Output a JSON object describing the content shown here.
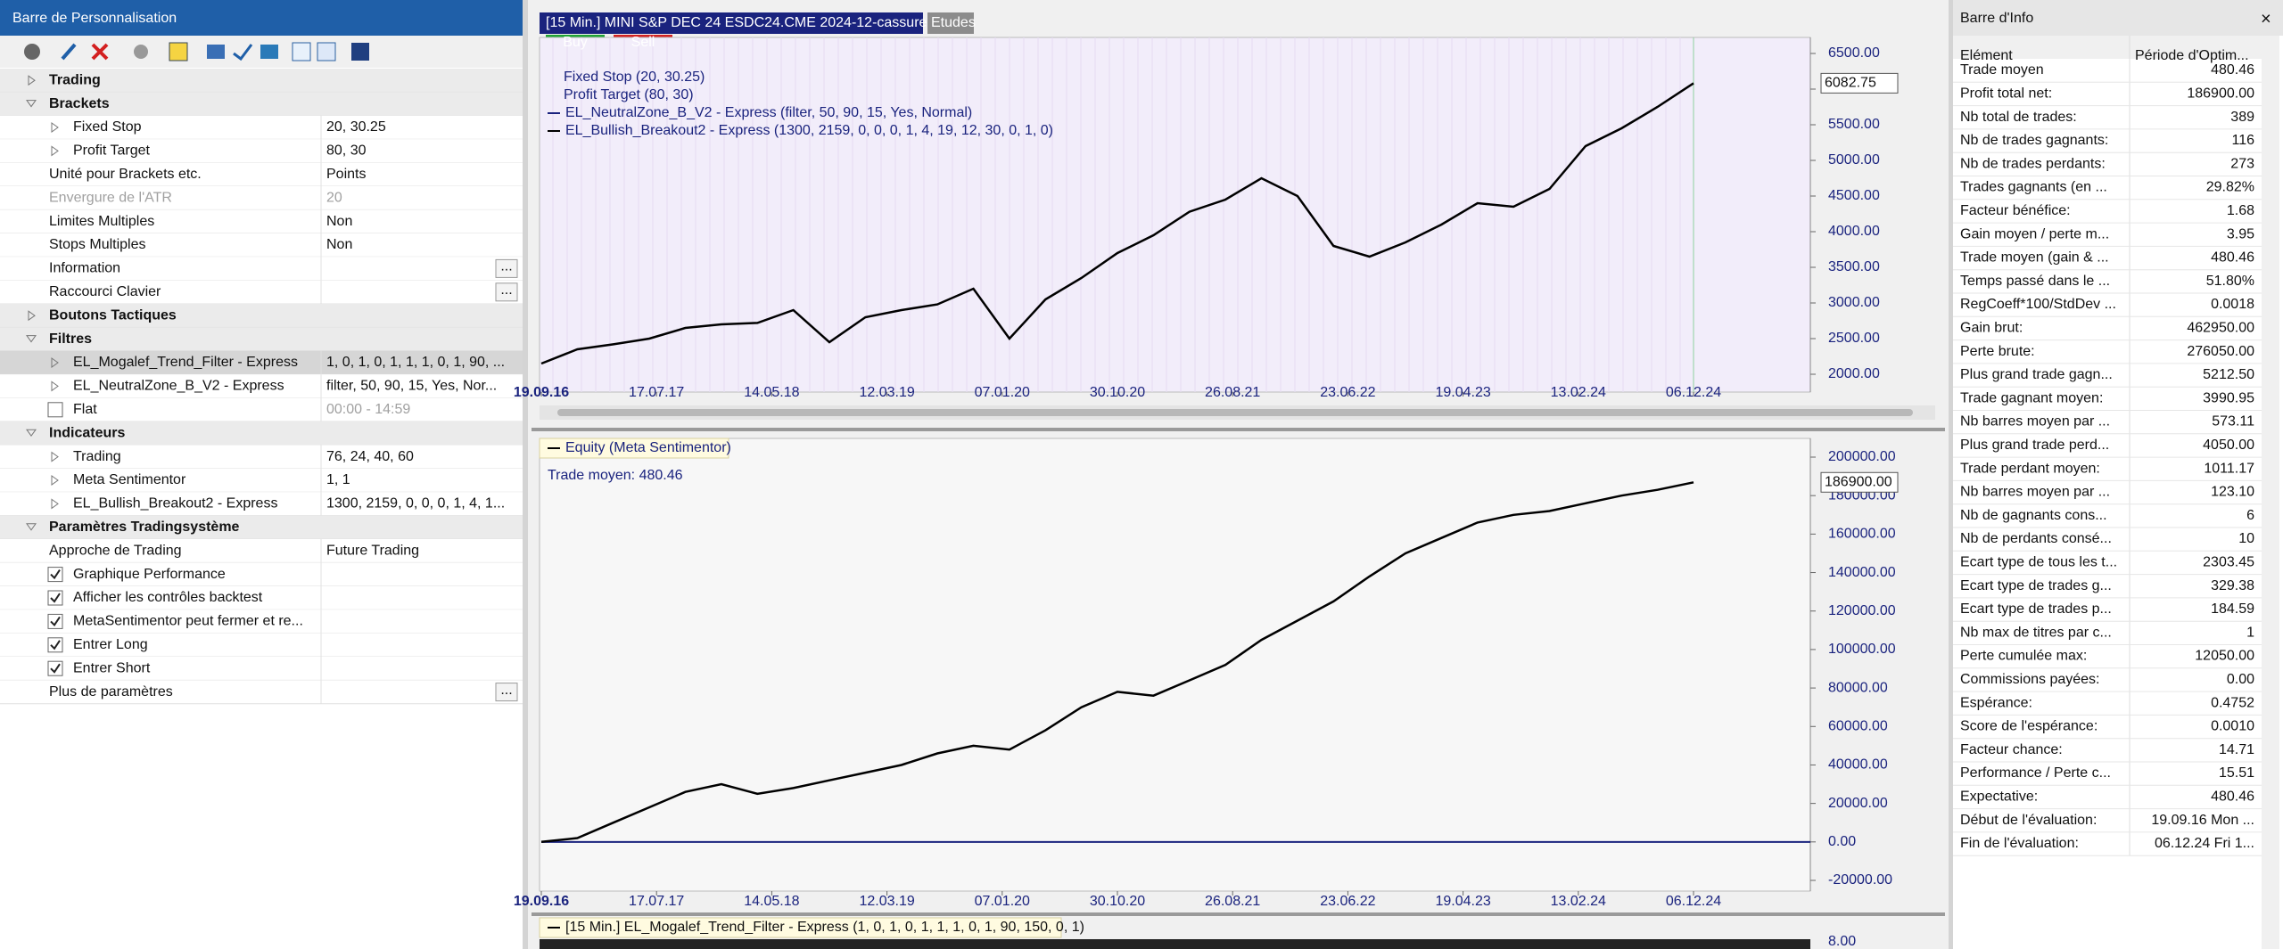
{
  "left_panel": {
    "title": "Barre de Personnalisation",
    "rows": [
      {
        "kind": "section",
        "label": "Trading"
      },
      {
        "kind": "section",
        "label": "Brackets",
        "open": true
      },
      {
        "kind": "item",
        "label": "Fixed Stop",
        "value": "20, 30.25",
        "expander": true
      },
      {
        "kind": "item",
        "label": "Profit Target",
        "value": "80, 30",
        "expander": true
      },
      {
        "kind": "item",
        "label": "Unité pour Brackets etc.",
        "value": "Points"
      },
      {
        "kind": "item",
        "label": "Envergure de l'ATR",
        "value": "20",
        "disabled": true
      },
      {
        "kind": "item",
        "label": "Limites Multiples",
        "value": "Non"
      },
      {
        "kind": "item",
        "label": "Stops Multiples",
        "value": "Non"
      },
      {
        "kind": "item",
        "label": "Information",
        "button": "..."
      },
      {
        "kind": "item",
        "label": "Raccourci Clavier",
        "button": "..."
      },
      {
        "kind": "section",
        "label": "Boutons Tactiques"
      },
      {
        "kind": "section",
        "label": "Filtres",
        "open": true
      },
      {
        "kind": "item",
        "label": "EL_Mogalef_Trend_Filter - Express",
        "value": "1, 0, 1, 0, 1, 1, 1, 0, 1, 90, ...",
        "expander": true,
        "selected": true
      },
      {
        "kind": "item",
        "label": "EL_NeutralZone_B_V2 - Express",
        "value": "filter, 50, 90, 15, Yes, Nor...",
        "expander": true
      },
      {
        "kind": "check",
        "label": "Flat",
        "value": "00:00 - 14:59",
        "checked": false,
        "disabled_value": true
      },
      {
        "kind": "section",
        "label": "Indicateurs",
        "open": true
      },
      {
        "kind": "item",
        "label": "Trading",
        "value": "76, 24, 40, 60",
        "expander": true
      },
      {
        "kind": "item",
        "label": "Meta Sentimentor",
        "value": "1, 1",
        "expander": true
      },
      {
        "kind": "item",
        "label": "EL_Bullish_Breakout2 - Express",
        "value": "1300, 2159, 0, 0, 0, 1, 4, 1...",
        "expander": true
      },
      {
        "kind": "section",
        "label": "Paramètres Tradingsystème",
        "open": true
      },
      {
        "kind": "item",
        "label": "Approche de Trading",
        "value": "Future Trading"
      },
      {
        "kind": "check",
        "label": "Graphique Performance",
        "checked": true
      },
      {
        "kind": "check",
        "label": "Afficher les contrôles backtest",
        "checked": true
      },
      {
        "kind": "check",
        "label": "MetaSentimentor peut fermer et re...",
        "checked": true
      },
      {
        "kind": "check",
        "label": "Entrer Long",
        "checked": true
      },
      {
        "kind": "check",
        "label": "Entrer Short",
        "checked": true
      },
      {
        "kind": "item",
        "label": "Plus de paramètres",
        "button": "..."
      }
    ]
  },
  "chart_data": [
    {
      "type": "line",
      "title": "[15 Min.] MINI S&P DEC 24   ESDC24.CME 2024-12-cassure",
      "tab": "Etudes",
      "buttons": [
        "Buy",
        "Sell"
      ],
      "legend": [
        "Fixed Stop  (20, 30.25)",
        "Profit Target  (80, 30)",
        "EL_NeutralZone_B_V2 - Express  (filter, 50, 90, 15, Yes, Normal)",
        "EL_Bullish_Breakout2 - Express  (1300, 2159, 0, 0, 0, 1, 4, 19, 12, 30, 0, 1, 0)"
      ],
      "xtick_labels": [
        "19.09.16",
        "17.07.17",
        "14.05.18",
        "12.03.19",
        "07.01.20",
        "30.10.20",
        "26.08.21",
        "23.06.22",
        "19.04.23",
        "13.02.24",
        "06.12.24"
      ],
      "values": [
        2150,
        2350,
        2420,
        2500,
        2650,
        2700,
        2720,
        2900,
        2450,
        2800,
        2900,
        2980,
        3200,
        2500,
        3050,
        3350,
        3700,
        3950,
        4280,
        4450,
        4750,
        4500,
        3800,
        3650,
        3850,
        4100,
        4400,
        4350,
        4600,
        5200,
        5450,
        5750,
        6082.75
      ],
      "last_label": "6082.75",
      "color": "#000000",
      "ylim": [
        2000,
        6500
      ],
      "yticks": [
        {
          "value": 2000,
          "label": "2000.00"
        },
        {
          "value": 2500,
          "label": "2500.00"
        },
        {
          "value": 3000,
          "label": "3000.00"
        },
        {
          "value": 3500,
          "label": "3500.00"
        },
        {
          "value": 4000,
          "label": "4000.00"
        },
        {
          "value": 4500,
          "label": "4500.00"
        },
        {
          "value": 5000,
          "label": "5000.00"
        },
        {
          "value": 5500,
          "label": "5500.00"
        },
        {
          "value": 6000,
          "label": "6000.00"
        },
        {
          "value": 6500,
          "label": "6500.00"
        }
      ]
    },
    {
      "type": "line",
      "legend": [
        "Equity (Meta Sentimentor)"
      ],
      "annotation": "Trade moyen: 480.46",
      "xtick_labels": [
        "19.09.16",
        "17.07.17",
        "14.05.18",
        "12.03.19",
        "07.01.20",
        "30.10.20",
        "26.08.21",
        "23.06.22",
        "19.04.23",
        "13.02.24",
        "06.12.24"
      ],
      "values": [
        0,
        2000,
        10000,
        18000,
        26000,
        30000,
        25000,
        28000,
        32000,
        36000,
        40000,
        46000,
        50000,
        48000,
        58000,
        70000,
        78000,
        76000,
        84000,
        92000,
        105000,
        115000,
        125000,
        138000,
        150000,
        158000,
        166000,
        170000,
        172000,
        176000,
        180000,
        183000,
        186900
      ],
      "last_label": "186900.00",
      "color": "#000000",
      "reference_line": 0,
      "reference_color": "#1a237e",
      "ylim": [
        -20000,
        200000
      ],
      "yticks": [
        {
          "value": -20000,
          "label": "-20000.00"
        },
        {
          "value": 0,
          "label": "0.00"
        },
        {
          "value": 20000,
          "label": "20000.00"
        },
        {
          "value": 40000,
          "label": "40000.00"
        },
        {
          "value": 60000,
          "label": "60000.00"
        },
        {
          "value": 80000,
          "label": "80000.00"
        },
        {
          "value": 100000,
          "label": "100000.00"
        },
        {
          "value": 120000,
          "label": "120000.00"
        },
        {
          "value": 140000,
          "label": "140000.00"
        },
        {
          "value": 160000,
          "label": "160000.00"
        },
        {
          "value": 180000,
          "label": "180000.00"
        },
        {
          "value": 200000,
          "label": "200000.00"
        }
      ]
    }
  ],
  "indicator_strip": {
    "title": "[15 Min.] EL_Mogalef_Trend_Filter - Express  (1, 0, 1, 0, 1, 1, 1, 0, 1, 90, 150, 0, 1)",
    "tick": "8.00"
  },
  "info_panel": {
    "title": "Barre d'Info",
    "headers": [
      "Elément",
      "Période d'Optim..."
    ],
    "rows": [
      [
        "Trade moyen",
        "480.46"
      ],
      [
        "Profit total net:",
        "186900.00"
      ],
      [
        "Nb total de trades:",
        "389"
      ],
      [
        "Nb de trades gagnants:",
        "116"
      ],
      [
        "Nb de trades perdants:",
        "273"
      ],
      [
        "Trades gagnants (en ...",
        "29.82%"
      ],
      [
        "Facteur bénéfice:",
        "1.68"
      ],
      [
        "Gain moyen / perte m...",
        "3.95"
      ],
      [
        "Trade moyen (gain & ...",
        "480.46"
      ],
      [
        "Temps passé dans le ...",
        "51.80%"
      ],
      [
        "RegCoeff*100/StdDev ...",
        "0.0018"
      ],
      [
        "Gain brut:",
        "462950.00"
      ],
      [
        "Perte brute:",
        "276050.00"
      ],
      [
        "Plus grand trade gagn...",
        "5212.50"
      ],
      [
        "Trade gagnant moyen:",
        "3990.95"
      ],
      [
        "Nb barres moyen par ...",
        "573.11"
      ],
      [
        "Plus grand trade perd...",
        "4050.00"
      ],
      [
        "Trade perdant moyen:",
        "1011.17"
      ],
      [
        "Nb barres moyen par ...",
        "123.10"
      ],
      [
        "Nb de gagnants cons...",
        "6"
      ],
      [
        "Nb de perdants consé...",
        "10"
      ],
      [
        "Ecart type de tous les t...",
        "2303.45"
      ],
      [
        "Ecart type de trades g...",
        "329.38"
      ],
      [
        "Ecart type de trades p...",
        "184.59"
      ],
      [
        "Nb max de titres par c...",
        "1"
      ],
      [
        "Perte cumulée max:",
        "12050.00"
      ],
      [
        "Commissions payées:",
        "0.00"
      ],
      [
        "Espérance:",
        "0.4752"
      ],
      [
        "Score de l'espérance:",
        "0.0010"
      ],
      [
        "Facteur chance:",
        "14.71"
      ],
      [
        "Performance / Perte c...",
        "15.51"
      ],
      [
        "Expectative:",
        "480.46"
      ],
      [
        "Début de l'évaluation:",
        "19.09.16 Mon ..."
      ],
      [
        "Fin de l'évaluation:",
        "06.12.24 Fri 1..."
      ]
    ]
  }
}
